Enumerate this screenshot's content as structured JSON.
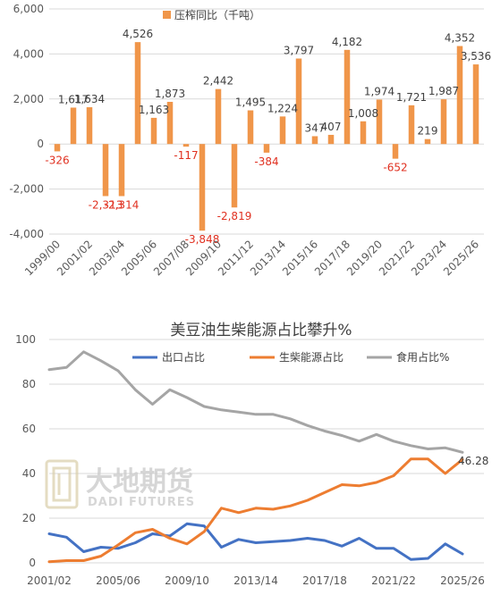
{
  "chart_data": [
    {
      "type": "bar",
      "legend": "压榨同比（千吨）",
      "legend_position": "top",
      "color": "#f0964a",
      "ylim": [
        -4000,
        6000
      ],
      "yticks": [
        "-4,000",
        "-2,000",
        "0",
        "2,000",
        "4,000",
        "6,000"
      ],
      "ytick_values": [
        -4000,
        -2000,
        0,
        2000,
        4000,
        6000
      ],
      "xtick_labels": [
        "1999/00",
        "2001/02",
        "2003/04",
        "2005/06",
        "2007/08",
        "2009/10",
        "2011/12",
        "2013/14",
        "2015/16",
        "2017/18",
        "2019/20",
        "2021/22",
        "2023/24",
        "2025/26"
      ],
      "values": [
        -326,
        1617,
        1634,
        -2313,
        -2314,
        4526,
        1163,
        1873,
        -117,
        -3848,
        2442,
        -2819,
        1495,
        -384,
        1224,
        3797,
        347,
        407,
        4182,
        1008,
        1974,
        -652,
        1721,
        219,
        1987,
        4352,
        3536
      ],
      "labels": [
        "-326",
        "1,617",
        "1,634",
        "-2,313",
        "-2,314",
        "4,526",
        "1,163",
        "1,873",
        "-117",
        "-3,848",
        "2,442",
        "-2,819",
        "1,495",
        "-384",
        "1,224",
        "3,797",
        "347",
        "407",
        "4,182",
        "1,008",
        "1,974",
        "-652",
        "1,721",
        "219",
        "1,987",
        "4,352",
        "3,536"
      ]
    },
    {
      "type": "line",
      "title": "美豆油生柴能源占比攀升%",
      "legend_position": "top",
      "ylim": [
        0,
        100
      ],
      "yticks": [
        "0",
        "20",
        "40",
        "60",
        "80",
        "100"
      ],
      "ytick_values": [
        0,
        20,
        40,
        60,
        80,
        100
      ],
      "xtick_labels": [
        "2001/02",
        "2005/06",
        "2009/10",
        "2013/14",
        "2017/18",
        "2021/22",
        "2025/26"
      ],
      "series": [
        {
          "name": "出口占比",
          "color": "#4472c4",
          "values": [
            13,
            11.5,
            5,
            7,
            6.5,
            9,
            13,
            12,
            17.5,
            16.5,
            7,
            10.5,
            9,
            9.5,
            10,
            11,
            10,
            7.5,
            11,
            6.5,
            6.5,
            1.5,
            2,
            8.5,
            4
          ]
        },
        {
          "name": "生柴能源占比",
          "color": "#ed7d31",
          "values": [
            0.5,
            1,
            1,
            3,
            8,
            13.5,
            15,
            11,
            8.5,
            14,
            24.5,
            22.5,
            24.5,
            24,
            25.5,
            28,
            31.5,
            35,
            34.5,
            36,
            39,
            46.5,
            46.5,
            40,
            46.28
          ]
        },
        {
          "name": "食用占比%",
          "color": "#a5a5a5",
          "values": [
            86.5,
            87.5,
            94.5,
            90.5,
            86,
            77.5,
            71,
            77.5,
            74,
            70,
            68.5,
            67.5,
            66.5,
            66.5,
            64.5,
            61.5,
            59,
            57,
            54.5,
            57.5,
            54.5,
            52.5,
            51,
            51.5,
            49.5
          ]
        }
      ],
      "end_label": "46.28"
    }
  ],
  "watermark": {
    "line1": "大地期货",
    "line2": "DADI FUTURES"
  }
}
